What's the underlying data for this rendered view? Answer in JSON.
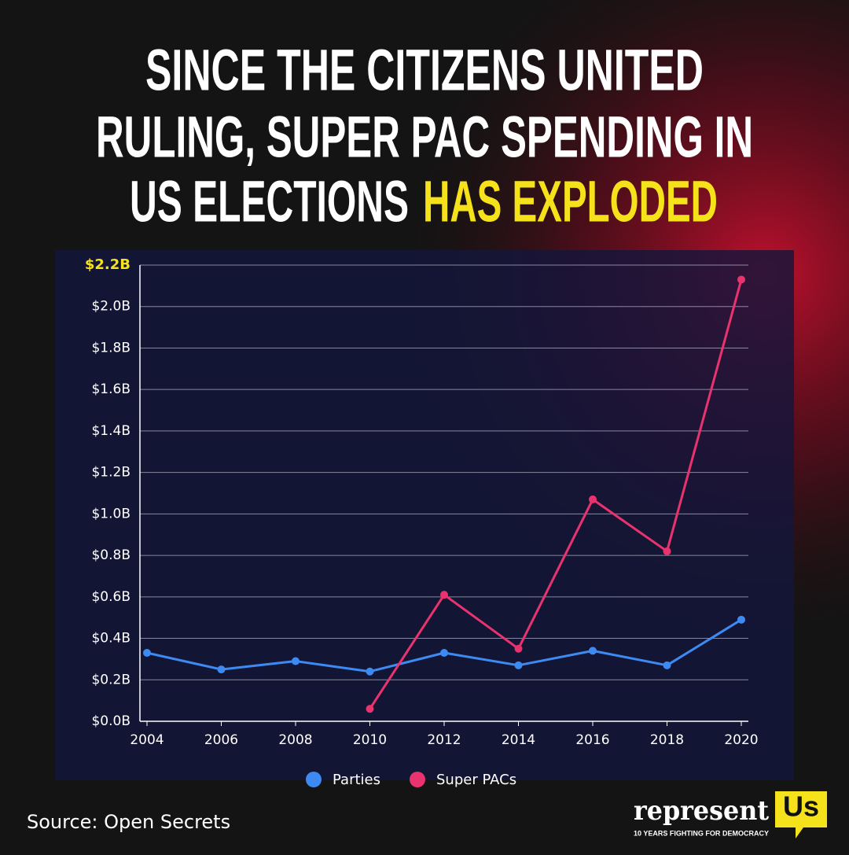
{
  "title": [
    "SINCE THE CITIZENS UNITED",
    "RULING, SUPER PAC SPENDING IN",
    "US ELECTIONS"
  ],
  "title_highlight": "HAS EXPLODED",
  "chart_data": {
    "type": "line",
    "x": [
      2004,
      2006,
      2008,
      2010,
      2012,
      2014,
      2016,
      2018,
      2020
    ],
    "series": [
      {
        "name": "Parties",
        "color": "#3d8bf2",
        "values": [
          0.33,
          0.25,
          0.29,
          0.24,
          0.33,
          0.27,
          0.34,
          0.27,
          0.49
        ]
      },
      {
        "name": "Super PACs",
        "color": "#e8336f",
        "values": [
          null,
          null,
          null,
          0.06,
          0.61,
          0.35,
          1.07,
          0.82,
          2.13
        ]
      }
    ],
    "xlim": [
      2004,
      2020
    ],
    "xticks": [
      2004,
      2006,
      2008,
      2010,
      2012,
      2014,
      2016,
      2018,
      2020
    ],
    "ylim": [
      0,
      2.2
    ],
    "yticks": [
      {
        "value": 0,
        "label": "$0.0B"
      },
      {
        "value": 0.2,
        "label": "$0.2B"
      },
      {
        "value": 0.4,
        "label": "$0.4B"
      },
      {
        "value": 0.6,
        "label": "$0.6B"
      },
      {
        "value": 0.8,
        "label": "$0.8B"
      },
      {
        "value": 1.0,
        "label": "$1.0B"
      },
      {
        "value": 1.2,
        "label": "$1.2B"
      },
      {
        "value": 1.4,
        "label": "$1.4B"
      },
      {
        "value": 1.6,
        "label": "$1.6B"
      },
      {
        "value": 1.8,
        "label": "$1.8B"
      },
      {
        "value": 2.0,
        "label": "$2.0B"
      },
      {
        "value": 2.2,
        "label": "$2.2B"
      }
    ],
    "grid": true,
    "legend": "bottom"
  },
  "source": "Source: Open Secrets",
  "brand": {
    "name": "represent",
    "badge": "Us",
    "tagline": "10 YEARS FIGHTING FOR DEMOCRACY"
  }
}
